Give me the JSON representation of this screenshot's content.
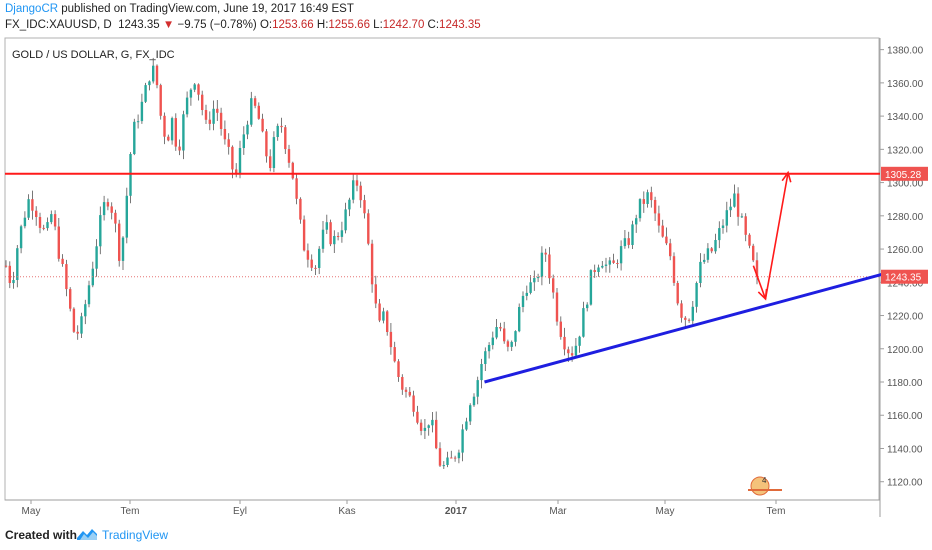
{
  "header": {
    "author": "DjangoCR",
    "published_text": "published on TradingView.com, June 19, 2017 16:49 EST",
    "symbol": "FX_IDC:XAUUSD, D",
    "last": "1243.35",
    "arrow": "▼",
    "change": "−9.75 (−0.78%)",
    "open_label": "O:",
    "open": "1253.66",
    "high_label": "H:",
    "high": "1255.66",
    "low_label": "L:",
    "low": "1242.70",
    "close_label": "C:",
    "close": "1243.35"
  },
  "footer": {
    "created_with": "Created with",
    "brand": "TradingView",
    "logo_icon": "tradingview-logo-icon"
  },
  "colors": {
    "up": "#26a69a",
    "down": "#ef5350",
    "resistance": "#ff1a1a",
    "trendline": "#1e1ee0",
    "arrows": "#ff1a1a",
    "price_line": "#e57373",
    "axis_badge": "#ef5350"
  },
  "chart_data": {
    "type": "candlestick",
    "title": "GOLD / US DOLLAR, G, FX_IDC",
    "x_tick_labels": [
      "May",
      "Tem",
      "Eyl",
      "Kas",
      "2017",
      "Mar",
      "May",
      "Tem"
    ],
    "y_ticks": [
      1120,
      1140,
      1160,
      1180,
      1200,
      1220,
      1240,
      1260,
      1280,
      1300,
      1320,
      1340,
      1360,
      1380
    ],
    "ylim": [
      1109,
      1387
    ],
    "grid": false,
    "price_path": [
      1250,
      1238,
      1262,
      1278,
      1290,
      1286,
      1275,
      1268,
      1282,
      1262,
      1245,
      1226,
      1208,
      1212,
      1230,
      1248,
      1268,
      1285,
      1292,
      1275,
      1252,
      1290,
      1328,
      1340,
      1350,
      1365,
      1368,
      1340,
      1325,
      1338,
      1318,
      1340,
      1355,
      1364,
      1348,
      1332,
      1345,
      1342,
      1325,
      1315,
      1302,
      1322,
      1338,
      1348,
      1340,
      1322,
      1310,
      1328,
      1335,
      1320,
      1305,
      1280,
      1262,
      1255,
      1250,
      1266,
      1272,
      1264,
      1270,
      1278,
      1290,
      1302,
      1292,
      1268,
      1238,
      1212,
      1220,
      1205,
      1188,
      1178,
      1172,
      1168,
      1158,
      1150,
      1160,
      1140,
      1128,
      1130,
      1134,
      1142,
      1156,
      1170,
      1178,
      1192,
      1200,
      1210,
      1216,
      1200,
      1198,
      1215,
      1230,
      1240,
      1236,
      1248,
      1260,
      1242,
      1222,
      1208,
      1200,
      1198,
      1210,
      1225,
      1242,
      1252,
      1254,
      1248,
      1250,
      1258,
      1262,
      1268,
      1282,
      1288,
      1292,
      1284,
      1270,
      1262,
      1255,
      1232,
      1220,
      1218,
      1232,
      1248,
      1255,
      1258,
      1266,
      1275,
      1283,
      1292,
      1280,
      1266,
      1254,
      1243
    ],
    "last_price": 1243.35,
    "annotations": {
      "resistance_level": 1305.28,
      "resistance_label": "1305.28",
      "last_price_label": "1243.35",
      "trendline": {
        "from": [
          "2017-01-18",
          1180
        ],
        "to": [
          "2017-09-05",
          1245
        ]
      },
      "arrow_down": {
        "from": [
          "2017-06-22",
          1250
        ],
        "to": [
          "2017-06-29",
          1230
        ]
      },
      "arrow_up": {
        "from": [
          "2017-06-29",
          1230
        ],
        "to": [
          "2017-07-12",
          1306
        ]
      }
    }
  }
}
